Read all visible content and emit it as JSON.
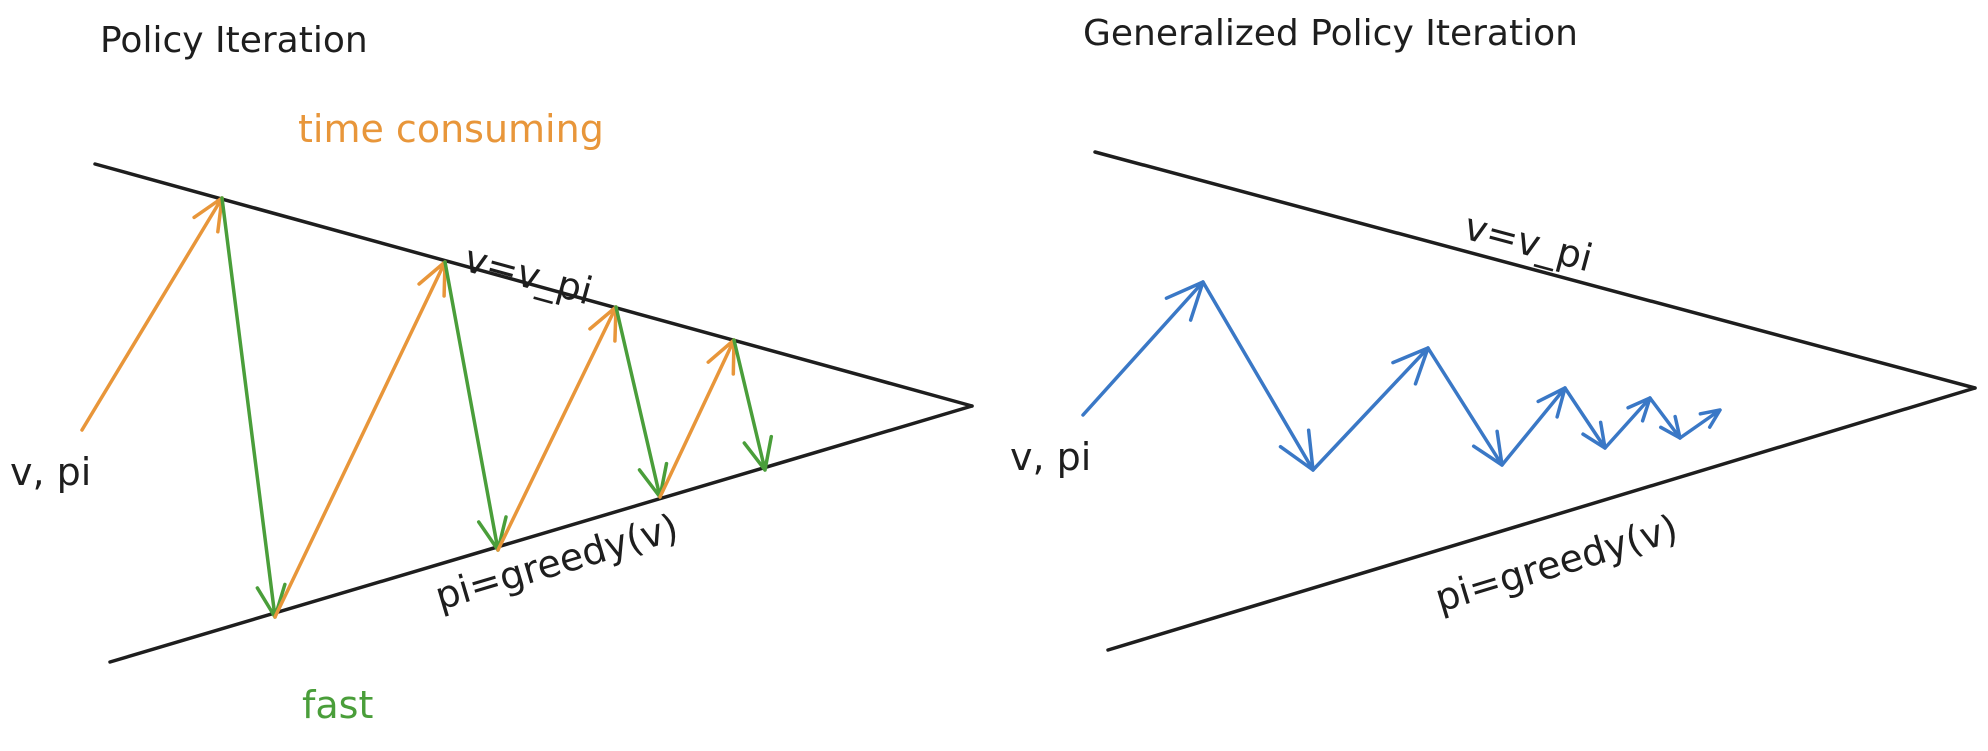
{
  "left_panel": {
    "title": "Policy Iteration",
    "top_note": "time consuming",
    "bottom_note": "fast",
    "start_label": "v, pi",
    "upper_line_label": "v=v_pi",
    "lower_line_label": "pi=greedy(v)"
  },
  "right_panel": {
    "title": "Generalized Policy Iteration",
    "start_label": "v, pi",
    "upper_line_label": "v=v_pi",
    "lower_line_label": "pi=greedy(v)"
  },
  "colors": {
    "evaluation": "#e8963a",
    "improvement": "#4a9e3a",
    "generalized": "#3a78c6",
    "ink": "#1e1e1e"
  }
}
